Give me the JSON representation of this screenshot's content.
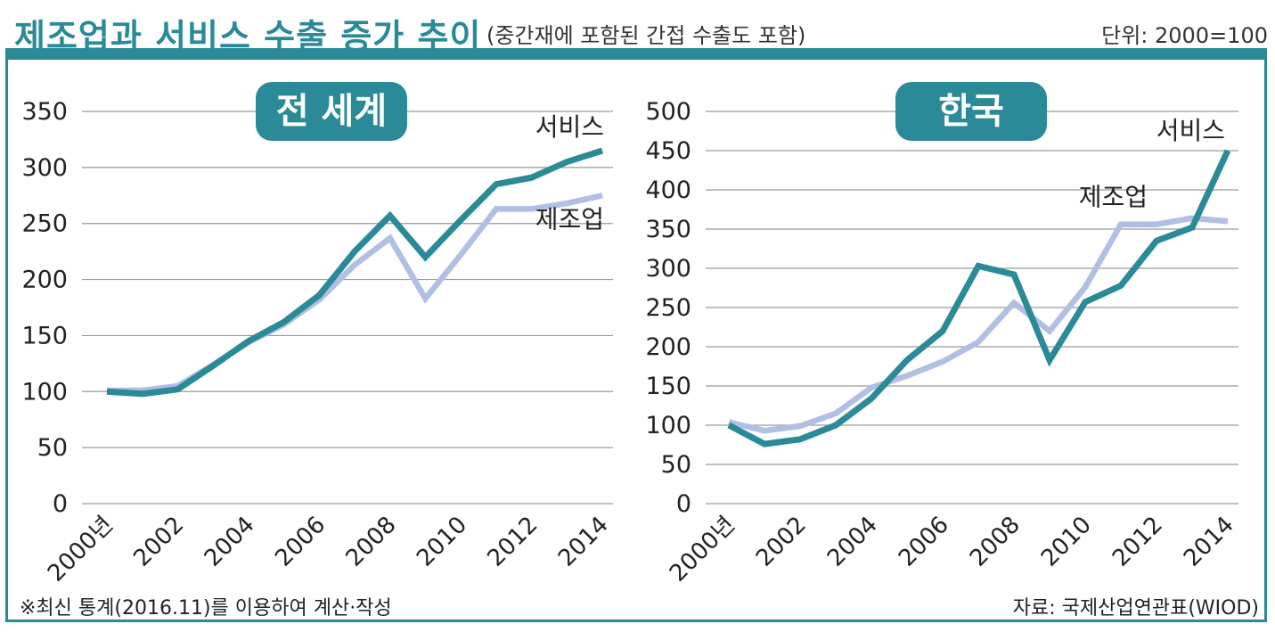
{
  "header": {
    "title": "제조업과 서비스 수출 증가 추이",
    "subtitle": "(중간재에 포함된 간접 수출도 포함)",
    "unit": "단위: 2000=100"
  },
  "footer": {
    "footnote": "※최신 통계(2016.11)를 이용하여 계산·작성",
    "source": "자료: 국제산업연관표(WIOD)"
  },
  "colors": {
    "accent": "#2a8a97",
    "services": "#2a8a97",
    "manufacturing": "#b1bfe4",
    "grid": "#9a9a9a"
  },
  "chart_data": [
    {
      "type": "line",
      "title": "전 세계",
      "x": [
        2000,
        2001,
        2002,
        2003,
        2004,
        2005,
        2006,
        2007,
        2008,
        2009,
        2010,
        2011,
        2012,
        2013,
        2014
      ],
      "xticks": [
        "2000년",
        "2002",
        "2004",
        "2006",
        "2008",
        "2010",
        "2012",
        "2014"
      ],
      "xtick_values": [
        2000,
        2002,
        2004,
        2006,
        2008,
        2010,
        2012,
        2014
      ],
      "ylim": [
        0,
        350
      ],
      "yticks": [
        0,
        50,
        100,
        150,
        200,
        250,
        300,
        350
      ],
      "grid": true,
      "series": [
        {
          "name": "서비스",
          "color": "#2a8a97",
          "values": [
            100,
            98,
            102,
            123,
            145,
            162,
            186,
            225,
            257,
            220,
            253,
            285,
            291,
            305,
            315
          ]
        },
        {
          "name": "제조업",
          "color": "#b1bfe4",
          "values": [
            101,
            101,
            105,
            124,
            144,
            160,
            182,
            213,
            237,
            183,
            222,
            263,
            263,
            268,
            275
          ]
        }
      ],
      "labels": [
        {
          "text": "서비스",
          "series": 0
        },
        {
          "text": "제조업",
          "series": 1
        }
      ]
    },
    {
      "type": "line",
      "title": "한국",
      "x": [
        2000,
        2001,
        2002,
        2003,
        2004,
        2005,
        2006,
        2007,
        2008,
        2009,
        2010,
        2011,
        2012,
        2013,
        2014
      ],
      "xticks": [
        "2000년",
        "2002",
        "2004",
        "2006",
        "2008",
        "2010",
        "2012",
        "2014"
      ],
      "xtick_values": [
        2000,
        2002,
        2004,
        2006,
        2008,
        2010,
        2012,
        2014
      ],
      "ylim": [
        0,
        500
      ],
      "yticks": [
        0,
        50,
        100,
        150,
        200,
        250,
        300,
        350,
        400,
        450,
        500
      ],
      "grid": true,
      "series": [
        {
          "name": "서비스",
          "color": "#2a8a97",
          "values": [
            100,
            76,
            82,
            100,
            134,
            183,
            220,
            303,
            292,
            183,
            257,
            278,
            335,
            352,
            450
          ]
        },
        {
          "name": "제조업",
          "color": "#b1bfe4",
          "values": [
            104,
            93,
            99,
            115,
            148,
            163,
            181,
            206,
            256,
            220,
            276,
            356,
            356,
            364,
            360
          ]
        }
      ],
      "labels": [
        {
          "text": "서비스",
          "series": 0
        },
        {
          "text": "제조업",
          "series": 1
        }
      ]
    }
  ]
}
